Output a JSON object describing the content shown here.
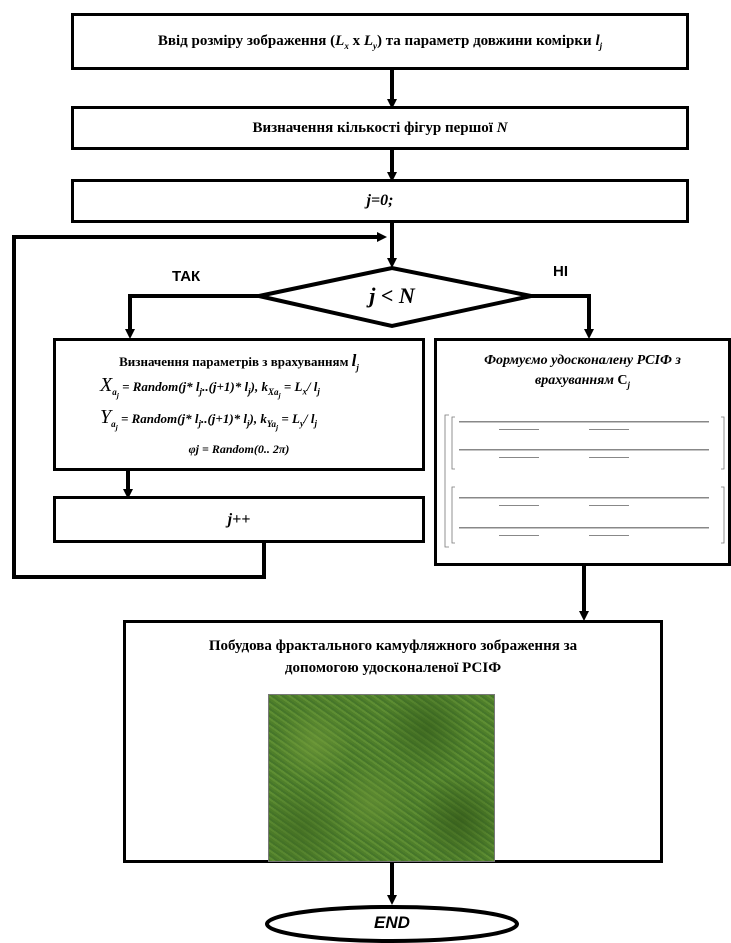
{
  "steps": {
    "input_prefix": "Ввід розміру зображення (",
    "input_Lx": "L",
    "input_Lx_sub": "x",
    "input_x": " x ",
    "input_Ly": "L",
    "input_Ly_sub": "y",
    "input_suffix": ") та параметр довжини комірки ",
    "input_lj": "l",
    "input_lj_sub": "j",
    "count": "Визначення кількості фігур першої ",
    "count_N": "N",
    "init": "j=0;",
    "decision": "j < N",
    "yes": "ТАК",
    "no": "НІ",
    "params_title": "Визначення параметрів з врахуванням ",
    "params_title_l": "l",
    "params_title_sub": "j",
    "formula1_a": "X",
    "formula1_b": " = Random(j* l",
    "formula1_c": "..(j+1)* l",
    "formula1_d": "), k",
    "formula1_e": " = L",
    "formula1_f": "/ l",
    "formula2_a": "Y",
    "formula2_b": " = Random(j* l",
    "formula2_c": "..(j+1)* l",
    "formula2_d": "), k",
    "formula2_e": " = L",
    "formula2_f": "/ l",
    "formula3": "φj = Random(0.. 2π)",
    "increment": "j++",
    "rsif_title_1": "Формуємо удосконалену РСІФ з",
    "rsif_title_2": "врахуванням ",
    "rsif_title_C": "C",
    "rsif_title_sub": "j",
    "build_1": "Побудова фрактального камуфляжного зображення за",
    "build_2": "допомогою удосконаленої РСІФ",
    "end": "END"
  },
  "colors": {
    "texture_dark": "#3f6b1f",
    "texture_light": "#6f9a3a"
  }
}
